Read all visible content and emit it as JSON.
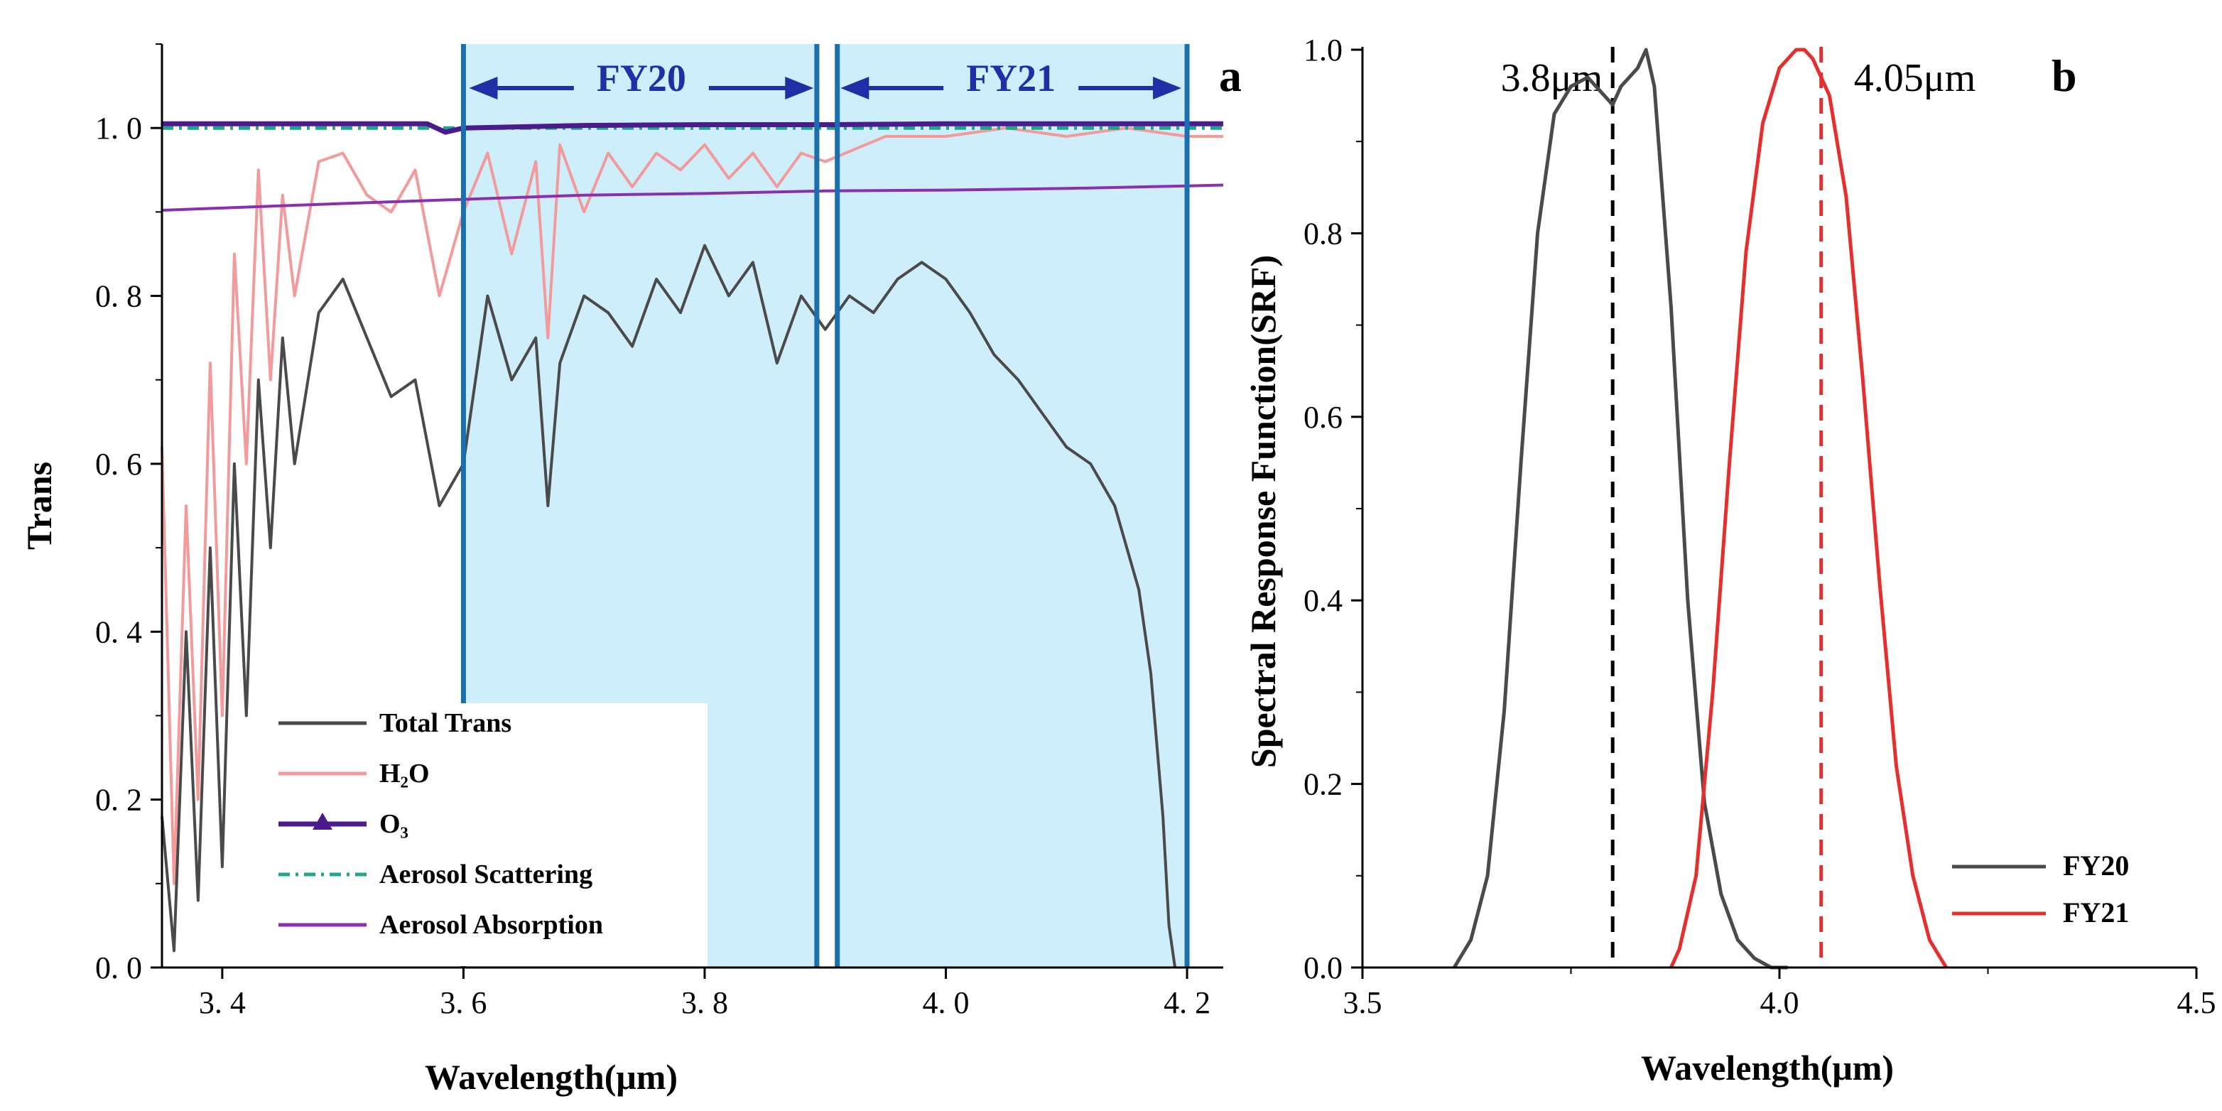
{
  "chart_data": [
    {
      "type": "line",
      "panel_label": "a",
      "xlabel": "Wavelength(μm)",
      "ylabel": "Trans",
      "xlim": [
        3.35,
        4.23
      ],
      "ylim": [
        0.0,
        1.1
      ],
      "x_ticks": [
        3.4,
        3.6,
        3.8,
        4.0,
        4.2
      ],
      "x_tick_labels": [
        "3. 4",
        "3. 6",
        "3. 8",
        "4. 0",
        "4. 2"
      ],
      "y_ticks": [
        0.0,
        0.2,
        0.4,
        0.6,
        0.8,
        1.0
      ],
      "y_tick_labels": [
        "0. 0",
        "0. 2",
        "0. 4",
        "0. 6",
        "0. 8",
        "1. 0"
      ],
      "grid": false,
      "legend_position": "bottom-left",
      "bands": [
        {
          "name": "FY20",
          "x_start": 3.6,
          "x_end": 3.895,
          "color": "#cdeefa"
        },
        {
          "name": "FY21",
          "x_start": 3.908,
          "x_end": 4.2,
          "color": "#cdeefa"
        }
      ],
      "band_lines_x": [
        3.6,
        3.893,
        3.91,
        4.2
      ],
      "series": [
        {
          "name": "Total Trans",
          "color": "#4a4a4a",
          "x": [
            3.35,
            3.36,
            3.37,
            3.38,
            3.39,
            3.4,
            3.41,
            3.42,
            3.43,
            3.44,
            3.45,
            3.46,
            3.48,
            3.5,
            3.52,
            3.54,
            3.56,
            3.58,
            3.6,
            3.62,
            3.64,
            3.66,
            3.67,
            3.68,
            3.7,
            3.72,
            3.74,
            3.76,
            3.78,
            3.8,
            3.82,
            3.84,
            3.86,
            3.88,
            3.9,
            3.92,
            3.94,
            3.96,
            3.98,
            4.0,
            4.02,
            4.04,
            4.06,
            4.08,
            4.1,
            4.12,
            4.14,
            4.16,
            4.17,
            4.18,
            4.185,
            4.19
          ],
          "y": [
            0.18,
            0.02,
            0.4,
            0.08,
            0.5,
            0.12,
            0.6,
            0.3,
            0.7,
            0.5,
            0.75,
            0.6,
            0.78,
            0.82,
            0.75,
            0.68,
            0.7,
            0.55,
            0.6,
            0.8,
            0.7,
            0.75,
            0.55,
            0.72,
            0.8,
            0.78,
            0.74,
            0.82,
            0.78,
            0.86,
            0.8,
            0.84,
            0.72,
            0.8,
            0.76,
            0.8,
            0.78,
            0.82,
            0.84,
            0.82,
            0.78,
            0.73,
            0.7,
            0.66,
            0.62,
            0.6,
            0.55,
            0.45,
            0.35,
            0.18,
            0.05,
            0.0
          ]
        },
        {
          "name": "H₂O",
          "color": "#f39a9a",
          "x": [
            3.35,
            3.36,
            3.37,
            3.38,
            3.39,
            3.4,
            3.41,
            3.42,
            3.43,
            3.44,
            3.45,
            3.46,
            3.48,
            3.5,
            3.52,
            3.54,
            3.56,
            3.58,
            3.6,
            3.62,
            3.64,
            3.66,
            3.67,
            3.68,
            3.7,
            3.72,
            3.74,
            3.76,
            3.78,
            3.8,
            3.82,
            3.84,
            3.86,
            3.88,
            3.9,
            3.95,
            4.0,
            4.05,
            4.1,
            4.15,
            4.2,
            4.23
          ],
          "y": [
            0.62,
            0.1,
            0.55,
            0.2,
            0.72,
            0.3,
            0.85,
            0.6,
            0.95,
            0.7,
            0.92,
            0.8,
            0.96,
            0.97,
            0.92,
            0.9,
            0.95,
            0.8,
            0.9,
            0.97,
            0.85,
            0.96,
            0.75,
            0.98,
            0.9,
            0.97,
            0.93,
            0.97,
            0.95,
            0.98,
            0.94,
            0.97,
            0.93,
            0.97,
            0.96,
            0.99,
            0.99,
            1.0,
            0.99,
            1.0,
            0.99,
            0.99
          ]
        },
        {
          "name": "O₃",
          "color": "#4b1a8c",
          "marker": "triangle",
          "x": [
            3.35,
            3.5,
            3.57,
            3.585,
            3.6,
            3.7,
            3.8,
            3.9,
            4.0,
            4.1,
            4.2,
            4.23
          ],
          "y": [
            1.005,
            1.005,
            1.005,
            0.995,
            1.0,
            1.003,
            1.004,
            1.004,
            1.005,
            1.005,
            1.005,
            1.005
          ]
        },
        {
          "name": "Aerosol Scattering",
          "color": "#1fa68c",
          "style": "dash-dot",
          "x": [
            3.35,
            3.6,
            3.8,
            4.0,
            4.23
          ],
          "y": [
            1.0,
            1.0,
            1.0,
            1.0,
            1.0
          ]
        },
        {
          "name": "Aerosol Absorption",
          "color": "#8a2fae",
          "x": [
            3.35,
            3.5,
            3.6,
            3.7,
            3.8,
            3.9,
            4.0,
            4.1,
            4.2,
            4.23
          ],
          "y": [
            0.902,
            0.91,
            0.915,
            0.92,
            0.922,
            0.925,
            0.926,
            0.928,
            0.931,
            0.932
          ]
        }
      ]
    },
    {
      "type": "line",
      "panel_label": "b",
      "xlabel": "Wavelength(μm)",
      "ylabel": "Spectral Response Function(SRF)",
      "xlim": [
        3.5,
        4.5
      ],
      "ylim": [
        0.0,
        1.0
      ],
      "x_ticks": [
        3.5,
        4.0,
        4.5
      ],
      "x_tick_labels": [
        "3.5",
        "4.0",
        "4.5"
      ],
      "y_ticks": [
        0.0,
        0.2,
        0.4,
        0.6,
        0.8,
        1.0
      ],
      "y_tick_labels": [
        "0.0",
        "0.2",
        "0.4",
        "0.6",
        "0.8",
        "1.0"
      ],
      "grid": false,
      "legend_position": "bottom-right",
      "center_lines": [
        {
          "x": 3.8,
          "label": "3.8μm",
          "color": "#000000"
        },
        {
          "x": 4.05,
          "label": "4.05μm",
          "color": "#e62e2e"
        }
      ],
      "series": [
        {
          "name": "FY20",
          "color": "#4a4a4a",
          "x": [
            3.61,
            3.63,
            3.65,
            3.67,
            3.69,
            3.71,
            3.73,
            3.75,
            3.77,
            3.79,
            3.8,
            3.81,
            3.83,
            3.84,
            3.85,
            3.87,
            3.89,
            3.91,
            3.93,
            3.95,
            3.97,
            3.99,
            4.01
          ],
          "y": [
            0.0,
            0.03,
            0.1,
            0.28,
            0.55,
            0.8,
            0.93,
            0.96,
            0.97,
            0.95,
            0.94,
            0.96,
            0.98,
            1.0,
            0.96,
            0.72,
            0.4,
            0.18,
            0.08,
            0.03,
            0.01,
            0.0,
            0.0
          ]
        },
        {
          "name": "FY21",
          "color": "#e62e2e",
          "x": [
            3.87,
            3.88,
            3.9,
            3.92,
            3.94,
            3.96,
            3.98,
            4.0,
            4.02,
            4.03,
            4.04,
            4.06,
            4.08,
            4.1,
            4.12,
            4.14,
            4.16,
            4.18,
            4.2
          ],
          "y": [
            0.0,
            0.02,
            0.1,
            0.3,
            0.55,
            0.78,
            0.92,
            0.98,
            1.0,
            1.0,
            0.99,
            0.95,
            0.84,
            0.64,
            0.42,
            0.22,
            0.1,
            0.03,
            0.0
          ]
        }
      ]
    }
  ]
}
